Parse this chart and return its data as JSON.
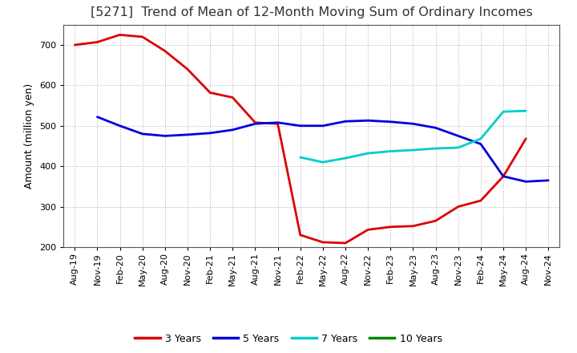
{
  "title": "[5271]  Trend of Mean of 12-Month Moving Sum of Ordinary Incomes",
  "ylabel": "Amount (million yen)",
  "ylim": [
    200,
    750
  ],
  "yticks": [
    200,
    300,
    400,
    500,
    600,
    700
  ],
  "background_color": "#ffffff",
  "plot_bg_color": "#ffffff",
  "grid_color": "#b0b0b0",
  "x_labels": [
    "Aug-19",
    "Nov-19",
    "Feb-20",
    "May-20",
    "Aug-20",
    "Nov-20",
    "Feb-21",
    "May-21",
    "Aug-21",
    "Nov-21",
    "Feb-22",
    "May-22",
    "Aug-22",
    "Nov-22",
    "Feb-23",
    "May-23",
    "Aug-23",
    "Nov-23",
    "Feb-24",
    "May-24",
    "Aug-24",
    "Nov-24"
  ],
  "series": {
    "3 Years": {
      "color": "#dd0000",
      "data_x": [
        0,
        1,
        2,
        3,
        4,
        5,
        6,
        7,
        8,
        9,
        10,
        11,
        12,
        13,
        14,
        15,
        16,
        17,
        18,
        19,
        20
      ],
      "data_y": [
        700,
        707,
        725,
        720,
        685,
        640,
        582,
        570,
        508,
        505,
        230,
        212,
        210,
        243,
        250,
        252,
        265,
        300,
        315,
        375,
        468
      ]
    },
    "5 Years": {
      "color": "#0000dd",
      "data_x": [
        1,
        2,
        3,
        4,
        5,
        6,
        7,
        8,
        9,
        10,
        11,
        12,
        13,
        14,
        15,
        16,
        17,
        18,
        19,
        20,
        21
      ],
      "data_y": [
        522,
        500,
        480,
        475,
        478,
        482,
        490,
        505,
        508,
        500,
        500,
        511,
        513,
        510,
        505,
        495,
        475,
        455,
        375,
        362,
        365
      ]
    },
    "7 Years": {
      "color": "#00cccc",
      "data_x": [
        10,
        11,
        12,
        13,
        14,
        15,
        16,
        17,
        18,
        19,
        20
      ],
      "data_y": [
        422,
        410,
        420,
        432,
        437,
        440,
        444,
        446,
        468,
        535,
        537
      ]
    },
    "10 Years": {
      "color": "#008800",
      "data_x": [],
      "data_y": []
    }
  },
  "title_fontsize": 11.5,
  "axis_label_fontsize": 9,
  "tick_fontsize": 8,
  "legend_fontsize": 9,
  "linewidth": 2.0
}
